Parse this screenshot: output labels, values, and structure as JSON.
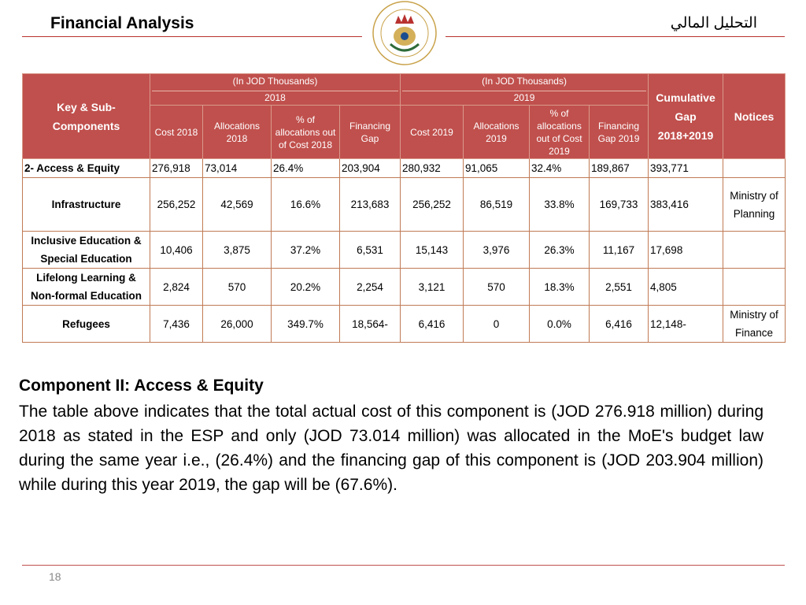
{
  "header": {
    "title": "Financial Analysis",
    "title_ar": "التحليل المالي"
  },
  "table": {
    "key_header": "Key & Sub-Components",
    "group_2018": {
      "unit": "(In JOD Thousands)",
      "year": "2018"
    },
    "group_2019": {
      "unit": "(In JOD Thousands)",
      "year": "2019"
    },
    "cumulative_header": "Cumulative Gap 2018+2019",
    "notices_header": "Notices",
    "sub_headers": [
      "Cost 2018",
      "Allocations 2018",
      "% of allocations out of Cost 2018",
      "Financing Gap",
      "Cost 2019",
      "Allocations 2019",
      "% of allocations out of Cost 2019",
      "Financing Gap 2019"
    ],
    "rows": [
      [
        "2- Access & Equity",
        "276,918",
        "73,014",
        "26.4%",
        "203,904",
        "280,932",
        "91,065",
        "32.4%",
        "189,867",
        "393,771",
        null
      ],
      [
        "Infrastructure",
        "256,252",
        "42,569",
        "16.6%",
        "213,683",
        "256,252",
        "86,519",
        "33.8%",
        "169,733",
        "383,416",
        "Ministry of Planning"
      ],
      [
        "Inclusive Education & Special Education",
        "10,406",
        "3,875",
        "37.2%",
        "6,531",
        "15,143",
        "3,976",
        "26.3%",
        "11,167",
        "17,698",
        null
      ],
      [
        "Lifelong Learning & Non-formal Education",
        "2,824",
        "570",
        "20.2%",
        "2,254",
        "3,121",
        "570",
        "18.3%",
        "2,551",
        "4,805",
        null
      ],
      [
        "Refugees",
        "7,436",
        "26,000",
        "349.7%",
        "18,564-",
        "6,416",
        "0",
        "0.0%",
        "6,416",
        "12,148-",
        "Ministry of Finance"
      ]
    ]
  },
  "body": {
    "heading": "Component II: Access & Equity",
    "paragraph": "The table above indicates that the total actual cost of this component is (JOD 276.918 million) during 2018 as stated in the ESP and only (JOD 73.014 million) was allocated in the MoE's budget law during the same year i.e., (26.4%) and the financing gap of this component is (JOD 203.904 million) while during this year 2019, the gap will be (67.6%)."
  },
  "footer": {
    "page": "18"
  }
}
